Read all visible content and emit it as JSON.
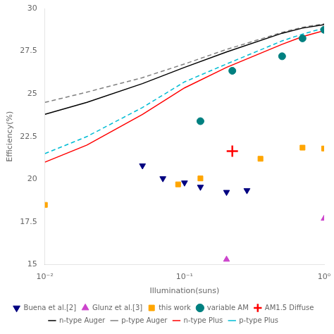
{
  "chart_data": {
    "type": "line",
    "x_label": "Illumination(suns)",
    "y_label": "Efficiency(%)",
    "log": "x",
    "grid": false,
    "legend": "bottom",
    "xlim": [
      0.01,
      1
    ],
    "xticks": [
      {
        "value": 0.01,
        "label": "10⁻²"
      },
      {
        "value": 0.1,
        "label": "10⁻¹"
      },
      {
        "value": 1,
        "label": "10⁰"
      }
    ],
    "ylim": [
      15,
      30
    ],
    "yticks": [
      15,
      17.5,
      20,
      22.5,
      25,
      27.5,
      30
    ],
    "series": [
      {
        "name": "n-type Auger",
        "type": "line",
        "color": "black",
        "line_style": "solid",
        "x": [
          0.01,
          0.02,
          0.05,
          0.1,
          0.2,
          0.5,
          0.7,
          1.0
        ],
        "values": [
          23.8,
          24.5,
          25.6,
          26.55,
          27.45,
          28.55,
          28.85,
          29.05
        ]
      },
      {
        "name": "p-type Auger",
        "type": "line",
        "color": "gray",
        "line_style": "dashed",
        "x": [
          0.01,
          0.02,
          0.05,
          0.1,
          0.2,
          0.5,
          0.7,
          1.0
        ],
        "values": [
          24.5,
          25.1,
          25.95,
          26.75,
          27.6,
          28.6,
          28.9,
          29.1
        ]
      },
      {
        "name": "n-type Plus",
        "type": "line",
        "color": "red",
        "line_style": "solid",
        "x": [
          0.01,
          0.02,
          0.05,
          0.1,
          0.2,
          0.5,
          0.7,
          1.0
        ],
        "values": [
          21.0,
          22.0,
          23.8,
          25.35,
          26.55,
          27.9,
          28.35,
          28.7
        ]
      },
      {
        "name": "p-type Plus",
        "type": "line",
        "color": "#00bcd4",
        "line_style": "dashed",
        "x": [
          0.01,
          0.02,
          0.05,
          0.1,
          0.2,
          0.5,
          0.7,
          1.0
        ],
        "values": [
          21.5,
          22.5,
          24.2,
          25.7,
          26.75,
          28.1,
          28.5,
          28.85
        ]
      },
      {
        "name": "Buena et al.[2]",
        "type": "scatter",
        "color": "navy",
        "marker": "triangle_down",
        "x": [
          0.05,
          0.07,
          0.1,
          0.13,
          0.2,
          0.28
        ],
        "values": [
          20.8,
          20.05,
          19.8,
          19.55,
          19.25,
          19.35
        ]
      },
      {
        "name": "Glunz et al.[3]",
        "type": "scatter",
        "color": "#cc44cc",
        "marker": "triangle_up",
        "x": [
          0.2,
          1.0
        ],
        "values": [
          15.3,
          17.7
        ]
      },
      {
        "name": "this work",
        "type": "scatter",
        "color": "#FFA500",
        "marker": "square",
        "x": [
          0.01,
          0.09,
          0.13,
          0.35,
          0.7,
          1.0
        ],
        "values": [
          18.5,
          19.7,
          20.05,
          21.2,
          21.85,
          21.8
        ]
      },
      {
        "name": "variable AM",
        "type": "scatter",
        "color": "#008080",
        "marker": "circle",
        "x": [
          0.13,
          0.22,
          0.5,
          0.7,
          1.0
        ],
        "values": [
          23.4,
          26.35,
          27.2,
          28.25,
          28.75
        ]
      },
      {
        "name": "AM1.5 Diffuse",
        "type": "scatter",
        "color": "red",
        "marker": "cross",
        "x": [
          0.22
        ],
        "values": [
          21.65
        ]
      }
    ]
  }
}
